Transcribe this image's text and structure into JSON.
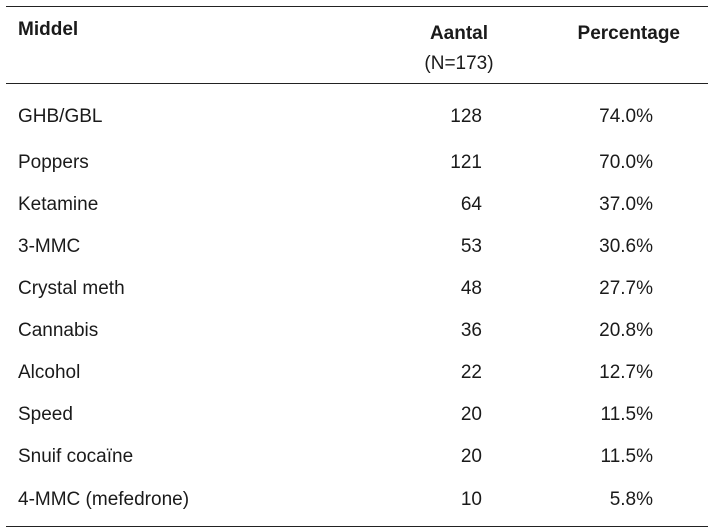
{
  "table": {
    "headers": {
      "name": "Middel",
      "count": "Aantal",
      "count_sub": "(N=173)",
      "percentage": "Percentage"
    },
    "rows": [
      {
        "name": "GHB/GBL",
        "count": "128",
        "percentage": "74.0%"
      },
      {
        "name": "Poppers",
        "count": "121",
        "percentage": "70.0%"
      },
      {
        "name": "Ketamine",
        "count": "64",
        "percentage": "37.0%"
      },
      {
        "name": "3-MMC",
        "count": "53",
        "percentage": "30.6%"
      },
      {
        "name": "Crystal meth",
        "count": "48",
        "percentage": "27.7%"
      },
      {
        "name": "Cannabis",
        "count": "36",
        "percentage": "20.8%"
      },
      {
        "name": "Alcohol",
        "count": "22",
        "percentage": "12.7%"
      },
      {
        "name": "Speed",
        "count": "20",
        "percentage": "11.5%"
      },
      {
        "name": "Snuif cocaïne",
        "count": "20",
        "percentage": "11.5%"
      },
      {
        "name": "4-MMC (mefedrone)",
        "count": "10",
        "percentage": "5.8%"
      }
    ]
  }
}
